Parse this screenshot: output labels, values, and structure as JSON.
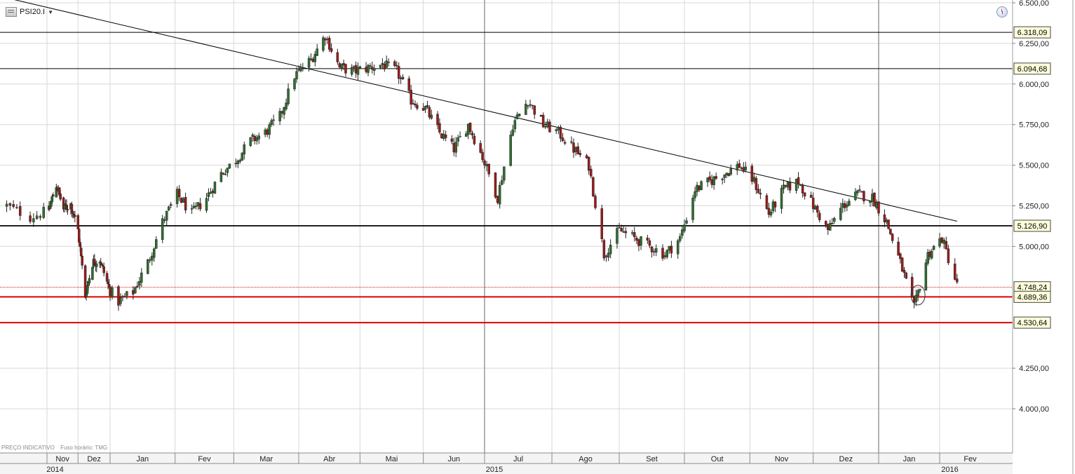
{
  "header": {
    "symbol": "PSI20.I"
  },
  "footer": {
    "price_note": "PREÇO INDICATIVO",
    "tz_note": "Fuso horário: TMG"
  },
  "colors": {
    "up": "#2f6f2f",
    "down": "#9b1b1b",
    "support": "#e00000",
    "resistance": "#000000",
    "grid": "#d8d8d8"
  },
  "chart_data": {
    "type": "candlestick",
    "title": "",
    "ylim": [
      3800,
      6500
    ],
    "y_ticks": [
      {
        "value": 6500,
        "label": "6.500,00"
      },
      {
        "value": 6250,
        "label": "6.250,00"
      },
      {
        "value": 6000,
        "label": "6.000,00"
      },
      {
        "value": 5750,
        "label": "5.750,00"
      },
      {
        "value": 5500,
        "label": "5.500,00"
      },
      {
        "value": 5250,
        "label": "5.250,00"
      },
      {
        "value": 5000,
        "label": "5.000,00"
      },
      {
        "value": 4250,
        "label": "4.250,00"
      },
      {
        "value": 4000,
        "label": "4.000,00"
      }
    ],
    "months": [
      {
        "label": "Nov",
        "date": "2014-11-01"
      },
      {
        "label": "Dez",
        "date": "2014-12-01"
      },
      {
        "label": "Jan",
        "date": "2015-01-01"
      },
      {
        "label": "Fev",
        "date": "2015-02-01"
      },
      {
        "label": "Mar",
        "date": "2015-03-01"
      },
      {
        "label": "Abr",
        "date": "2015-04-01"
      },
      {
        "label": "Mai",
        "date": "2015-05-01"
      },
      {
        "label": "Jun",
        "date": "2015-06-01"
      },
      {
        "label": "Jul",
        "date": "2015-07-01"
      },
      {
        "label": "Ago",
        "date": "2015-08-01"
      },
      {
        "label": "Set",
        "date": "2015-09-01"
      },
      {
        "label": "Out",
        "date": "2015-10-01"
      },
      {
        "label": "Nov",
        "date": "2015-11-01"
      },
      {
        "label": "Dez",
        "date": "2015-12-01"
      },
      {
        "label": "Jan",
        "date": "2016-01-01"
      },
      {
        "label": "Fev",
        "date": "2016-02-01"
      }
    ],
    "years": [
      {
        "label": "2014",
        "date": "2014-10-15"
      },
      {
        "label": "2015",
        "date": "2015-07-01"
      },
      {
        "label": "2016",
        "date": "2016-01-01"
      }
    ],
    "levels": [
      {
        "value": 6318.09,
        "label": "6.318,09",
        "style": "resistance"
      },
      {
        "value": 6094.68,
        "label": "6.094,68",
        "style": "resistance"
      },
      {
        "value": 5126.9,
        "label": "5.126,90",
        "style": "resistance-bold"
      },
      {
        "value": 4748.24,
        "label": "4.748,24",
        "style": "support-dotted"
      },
      {
        "value": 4689.36,
        "label": "4.689,36",
        "style": "support"
      },
      {
        "value": 4530.64,
        "label": "4.530,64",
        "style": "support"
      }
    ],
    "trendline": {
      "from": {
        "date": "2014-10-18",
        "value": 6540
      },
      "to": {
        "date": "2016-02-09",
        "value": 5155
      }
    },
    "annotation": {
      "type": "circle",
      "date": "2016-01-21",
      "value": 4700
    },
    "path": [
      [
        "2014-10-20",
        5250
      ],
      [
        "2014-10-27",
        5180
      ],
      [
        "2014-11-03",
        5230
      ],
      [
        "2014-11-10",
        5380
      ],
      [
        "2014-11-17",
        5230
      ],
      [
        "2014-11-24",
        5260
      ],
      [
        "2014-12-01",
        5100
      ],
      [
        "2014-12-08",
        4700
      ],
      [
        "2014-12-15",
        4900
      ],
      [
        "2014-12-22",
        4920
      ],
      [
        "2014-12-29",
        4780
      ],
      [
        "2015-01-05",
        4660
      ],
      [
        "2015-01-12",
        4720
      ],
      [
        "2015-01-19",
        4900
      ],
      [
        "2015-01-26",
        5150
      ],
      [
        "2015-02-02",
        5320
      ],
      [
        "2015-02-09",
        5200
      ],
      [
        "2015-02-16",
        5300
      ],
      [
        "2015-02-23",
        5450
      ],
      [
        "2015-03-02",
        5530
      ],
      [
        "2015-03-09",
        5650
      ],
      [
        "2015-03-16",
        5700
      ],
      [
        "2015-03-23",
        5800
      ],
      [
        "2015-03-30",
        6050
      ],
      [
        "2015-04-07",
        6150
      ],
      [
        "2015-04-14",
        6300
      ],
      [
        "2015-04-21",
        6100
      ],
      [
        "2015-04-28",
        6080
      ],
      [
        "2015-05-05",
        6100
      ],
      [
        "2015-05-12",
        6120
      ],
      [
        "2015-05-19",
        6080
      ],
      [
        "2015-05-26",
        5900
      ],
      [
        "2015-06-02",
        5850
      ],
      [
        "2015-06-09",
        5700
      ],
      [
        "2015-06-16",
        5600
      ],
      [
        "2015-06-23",
        5750
      ],
      [
        "2015-06-30",
        5550
      ],
      [
        "2015-07-07",
        5300
      ],
      [
        "2015-07-14",
        5750
      ],
      [
        "2015-07-21",
        5900
      ],
      [
        "2015-07-28",
        5750
      ],
      [
        "2015-08-04",
        5700
      ],
      [
        "2015-08-11",
        5600
      ],
      [
        "2015-08-18",
        5500
      ],
      [
        "2015-08-25",
        4950
      ],
      [
        "2015-09-01",
        5100
      ],
      [
        "2015-09-08",
        5050
      ],
      [
        "2015-09-15",
        5000
      ],
      [
        "2015-09-22",
        4950
      ],
      [
        "2015-09-29",
        5050
      ],
      [
        "2015-10-06",
        5350
      ],
      [
        "2015-10-13",
        5400
      ],
      [
        "2015-10-20",
        5450
      ],
      [
        "2015-10-27",
        5500
      ],
      [
        "2015-11-03",
        5400
      ],
      [
        "2015-11-10",
        5200
      ],
      [
        "2015-11-17",
        5350
      ],
      [
        "2015-11-24",
        5400
      ],
      [
        "2015-12-01",
        5250
      ],
      [
        "2015-12-08",
        5100
      ],
      [
        "2015-12-15",
        5250
      ],
      [
        "2015-12-22",
        5320
      ],
      [
        "2015-12-29",
        5300
      ],
      [
        "2016-01-05",
        5150
      ],
      [
        "2016-01-12",
        4900
      ],
      [
        "2016-01-19",
        4620
      ],
      [
        "2016-01-26",
        4950
      ],
      [
        "2016-02-02",
        5050
      ],
      [
        "2016-02-09",
        4760
      ]
    ]
  }
}
